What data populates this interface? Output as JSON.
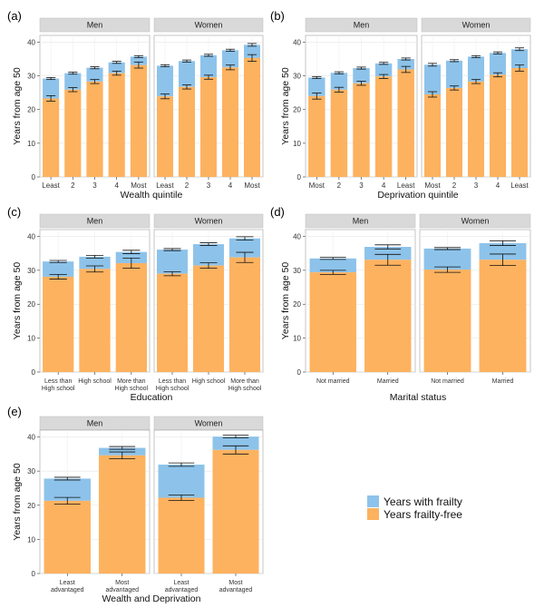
{
  "colors": {
    "frailty": "#8DC3EA",
    "frailty_free": "#FDB25F",
    "strip": "#D9D9D9",
    "panel_bg": "#EBEBEB",
    "grid": "#FFFFFF"
  },
  "legend": {
    "frailty_label": "Years with frailty",
    "free_label": "Years frailty-free"
  },
  "chart_data": [
    {
      "type": "bar",
      "panel_label": "(a)",
      "xlabel": "Wealth quintile",
      "ylabel": "Years from age 50",
      "ylim": [
        0,
        42
      ],
      "yticks": [
        0,
        10,
        20,
        30,
        40
      ],
      "categories": [
        "Least",
        "2",
        "3",
        "4",
        "Most"
      ],
      "facets": [
        {
          "name": "Men",
          "total": [
            29.2,
            30.8,
            32.4,
            34.0,
            35.7
          ],
          "free": [
            23.3,
            25.9,
            28.3,
            30.8,
            33.2
          ],
          "total_err": [
            0.3,
            0.3,
            0.3,
            0.3,
            0.3
          ],
          "free_err": [
            0.8,
            0.6,
            0.6,
            0.6,
            0.9
          ]
        },
        {
          "name": "Women",
          "total": [
            33.0,
            34.4,
            36.1,
            37.6,
            39.2
          ],
          "free": [
            23.9,
            26.7,
            29.6,
            32.5,
            35.3
          ],
          "total_err": [
            0.3,
            0.3,
            0.3,
            0.3,
            0.4
          ],
          "free_err": [
            0.7,
            0.6,
            0.6,
            0.7,
            1.0
          ]
        }
      ]
    },
    {
      "type": "bar",
      "panel_label": "(b)",
      "xlabel": "Deprivation quintile",
      "ylabel": "Years from age 50",
      "ylim": [
        0,
        42
      ],
      "yticks": [
        0,
        10,
        20,
        30,
        40
      ],
      "categories": [
        "Most",
        "2",
        "3",
        "4",
        "Least"
      ],
      "facets": [
        {
          "name": "Men",
          "total": [
            29.5,
            30.9,
            32.3,
            33.7,
            35.0
          ],
          "free": [
            24.0,
            25.9,
            27.8,
            29.8,
            31.9
          ],
          "total_err": [
            0.3,
            0.3,
            0.3,
            0.3,
            0.3
          ],
          "free_err": [
            0.9,
            0.7,
            0.6,
            0.6,
            0.9
          ]
        },
        {
          "name": "Women",
          "total": [
            33.3,
            34.5,
            35.7,
            36.8,
            37.9
          ],
          "free": [
            24.5,
            26.4,
            28.3,
            30.3,
            32.3
          ],
          "total_err": [
            0.4,
            0.3,
            0.3,
            0.3,
            0.4
          ],
          "free_err": [
            0.8,
            0.6,
            0.6,
            0.6,
            0.9
          ]
        }
      ]
    },
    {
      "type": "bar",
      "panel_label": "(c)",
      "xlabel": "Education",
      "ylabel": "Years from age 50",
      "ylim": [
        0,
        42
      ],
      "yticks": [
        0,
        10,
        20,
        30,
        40
      ],
      "categories": [
        "Less than\nHigh school",
        "High school",
        "More than\nHigh school"
      ],
      "facets": [
        {
          "name": "Men",
          "total": [
            32.6,
            34.0,
            35.4
          ],
          "free": [
            28.1,
            30.4,
            32.1
          ],
          "total_err": [
            0.3,
            0.4,
            0.5
          ],
          "free_err": [
            0.7,
            0.9,
            1.5
          ]
        },
        {
          "name": "Women",
          "total": [
            36.1,
            37.7,
            39.4
          ],
          "free": [
            29.0,
            31.4,
            33.8
          ],
          "total_err": [
            0.3,
            0.4,
            0.5
          ],
          "free_err": [
            0.6,
            0.8,
            1.5
          ]
        }
      ]
    },
    {
      "type": "bar",
      "panel_label": "(d)",
      "xlabel": "Marital status",
      "ylabel": "Years from age 50",
      "ylim": [
        0,
        42
      ],
      "yticks": [
        0,
        10,
        20,
        30,
        40
      ],
      "categories": [
        "Not married",
        "Married"
      ],
      "facets": [
        {
          "name": "Men",
          "total": [
            33.5,
            36.9
          ],
          "free": [
            29.4,
            33.1
          ],
          "total_err": [
            0.3,
            0.6
          ],
          "free_err": [
            0.6,
            1.6
          ]
        },
        {
          "name": "Women",
          "total": [
            36.4,
            38.0
          ],
          "free": [
            30.2,
            33.1
          ],
          "total_err": [
            0.3,
            0.7
          ],
          "free_err": [
            0.8,
            1.7
          ]
        }
      ]
    },
    {
      "type": "bar",
      "panel_label": "(e)",
      "xlabel": "Wealth and Deprivation",
      "ylabel": "Years from age 50",
      "ylim": [
        0,
        42
      ],
      "yticks": [
        0,
        10,
        20,
        30,
        40
      ],
      "categories": [
        "Least\nadvantaged",
        "Most\nadvantaged"
      ],
      "facets": [
        {
          "name": "Men",
          "total": [
            27.8,
            36.8
          ],
          "free": [
            21.3,
            34.6
          ],
          "total_err": [
            0.4,
            0.4
          ],
          "free_err": [
            1.0,
            1.0
          ]
        },
        {
          "name": "Women",
          "total": [
            31.9,
            40.1
          ],
          "free": [
            22.2,
            36.2
          ],
          "total_err": [
            0.5,
            0.4
          ],
          "free_err": [
            0.8,
            1.2
          ]
        }
      ]
    }
  ]
}
